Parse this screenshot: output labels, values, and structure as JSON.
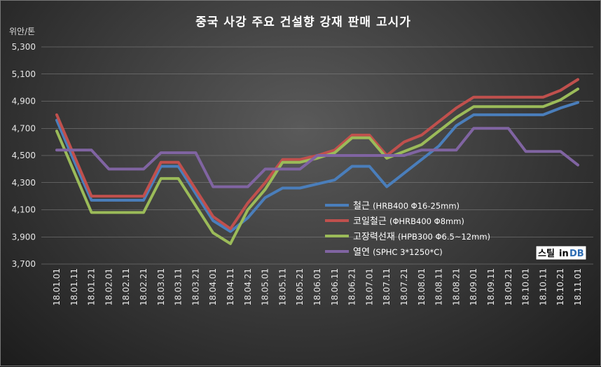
{
  "chart_data": {
    "type": "line",
    "title": "중국 사강 주요 건설향 강재 판매 고시가",
    "unit_label": "위안/톤",
    "ylim": [
      3700,
      5300
    ],
    "yticks": [
      "3,700",
      "3,900",
      "4,100",
      "4,300",
      "4,500",
      "4,700",
      "4,900",
      "5,100",
      "5,300"
    ],
    "grid": true,
    "legend_position": "right",
    "categories": [
      "18.01.01",
      "18.01.11",
      "18.01.21",
      "18.02.01",
      "18.02.11",
      "18.02.21",
      "18.03.01",
      "18.03.11",
      "18.03.21",
      "18.04.01",
      "18.04.11",
      "18.04.21",
      "18.05.01",
      "18.05.11",
      "18.05.21",
      "18.06.01",
      "18.06.11",
      "18.06.21",
      "18.07.01",
      "18.07.11",
      "18.07.21",
      "18.08.01",
      "18.08.11",
      "18.08.21",
      "18.09.01",
      "18.09.11",
      "18.09.21",
      "18.10.01",
      "18.10.11",
      "18.10.21",
      "18.11.01"
    ],
    "series": [
      {
        "name": "철근",
        "spec": "(HRB400  Φ16-25mm)",
        "color": "#4a7ebb",
        "values": [
          4760,
          4460,
          4170,
          4170,
          4170,
          4170,
          4420,
          4420,
          4220,
          4020,
          3940,
          4040,
          4190,
          4260,
          4260,
          4290,
          4320,
          4420,
          4420,
          4270,
          4370,
          4470,
          4570,
          4720,
          4800,
          4800,
          4800,
          4800,
          4800,
          4850,
          4890
        ]
      },
      {
        "name": "코일철근",
        "spec": "(ΦHRB400  Φ8mm)",
        "color": "#c0504d",
        "values": [
          4800,
          4500,
          4200,
          4200,
          4200,
          4200,
          4450,
          4450,
          4250,
          4050,
          3960,
          4150,
          4300,
          4470,
          4470,
          4500,
          4540,
          4650,
          4650,
          4500,
          4600,
          4650,
          4750,
          4850,
          4930,
          4930,
          4930,
          4930,
          4930,
          4980,
          5060
        ]
      },
      {
        "name": "고장력선재",
        "spec": "(HPB300  Φ6.5~12mm)",
        "color": "#9bbb59",
        "values": [
          4680,
          4380,
          4080,
          4080,
          4080,
          4080,
          4330,
          4330,
          4130,
          3930,
          3850,
          4100,
          4250,
          4450,
          4450,
          4480,
          4520,
          4630,
          4630,
          4480,
          4530,
          4580,
          4680,
          4780,
          4860,
          4860,
          4860,
          4860,
          4860,
          4910,
          4990
        ]
      },
      {
        "name": "열연",
        "spec": "(SPHC 3*1250*C)",
        "color": "#8064a2",
        "values": [
          4540,
          4540,
          4540,
          4400,
          4400,
          4400,
          4520,
          4520,
          4520,
          4270,
          4270,
          4270,
          4400,
          4400,
          4400,
          4500,
          4500,
          4500,
          4500,
          4500,
          4500,
          4540,
          4540,
          4540,
          4700,
          4700,
          4700,
          4530,
          4530,
          4530,
          4430
        ]
      }
    ],
    "watermark": {
      "part1": "스틸",
      "part2": "in",
      "part3": "DB"
    }
  }
}
